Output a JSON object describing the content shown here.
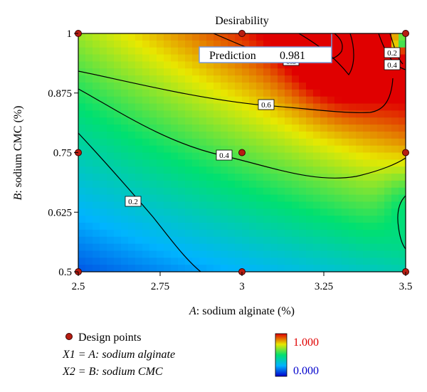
{
  "chart_data": {
    "type": "heatmap",
    "title": "Desirability",
    "xlabel_var": "A",
    "xlabel_rest": ": sodium alginate (%)",
    "ylabel_var": "B",
    "ylabel_rest": ": sodium CMC (%)",
    "xlim": [
      2.5,
      3.5
    ],
    "ylim": [
      0.5,
      1.0
    ],
    "xticks": [
      "2.5",
      "2.75",
      "3",
      "3.25",
      "3.5"
    ],
    "yticks": [
      "0.5",
      "0.625",
      "0.75",
      "0.875",
      "1"
    ],
    "contour_levels": [
      "0.2",
      "0.4",
      "0.6",
      "0.8",
      "0.2",
      "0.4"
    ],
    "prediction": {
      "label": "Prediction",
      "value": "0.981",
      "x": 3.3,
      "y": 1.0
    },
    "design_points": [
      {
        "x": 2.5,
        "y": 0.5
      },
      {
        "x": 3.0,
        "y": 0.5
      },
      {
        "x": 3.5,
        "y": 0.5
      },
      {
        "x": 2.5,
        "y": 0.75
      },
      {
        "x": 3.0,
        "y": 0.75
      },
      {
        "x": 3.5,
        "y": 0.75
      },
      {
        "x": 2.5,
        "y": 1.0
      },
      {
        "x": 3.0,
        "y": 1.0
      },
      {
        "x": 3.5,
        "y": 1.0
      }
    ],
    "color_scale": {
      "min_label": "0.000",
      "max_label": "1.000",
      "min_color": "#0000cc",
      "max_color": "#e00000"
    },
    "legend": {
      "design_points": "Design points",
      "x1": "X1 = A: sodium alginate",
      "x2": "X2 = B: sodium CMC"
    }
  }
}
